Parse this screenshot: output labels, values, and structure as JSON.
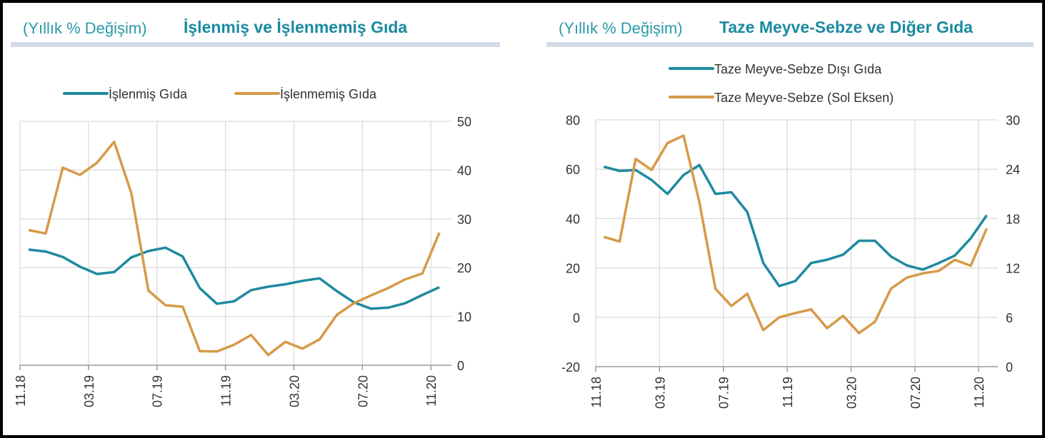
{
  "colors": {
    "processed": "#1f8aa0",
    "unprocessed": "#d69a48",
    "title": "#1a8aa0",
    "band": "#d3dbe6",
    "grid": "#dcdcdc"
  },
  "chart_data": [
    {
      "type": "line",
      "subtitle": "(Yıllık % Değişim)",
      "title": "İşlenmiş ve İşlenmemiş Gıda",
      "x": [
        "11.18",
        "12.18",
        "01.19",
        "02.19",
        "03.19",
        "04.19",
        "05.19",
        "06.19",
        "07.19",
        "08.19",
        "09.19",
        "10.19",
        "11.19",
        "12.19",
        "01.20",
        "02.20",
        "03.20",
        "04.20",
        "05.20",
        "06.20",
        "07.20",
        "08.20",
        "09.20",
        "10.20",
        "11.20"
      ],
      "xticks": [
        "11.18",
        "03.19",
        "07.19",
        "11.19",
        "03.20",
        "07.20",
        "11.20"
      ],
      "y_axis_right": {
        "ylim": [
          0,
          50
        ],
        "ticks": [
          0,
          10,
          20,
          30,
          40,
          50
        ]
      },
      "grid": true,
      "legend_placement": "top",
      "series": [
        {
          "name": "İşlenmiş Gıda",
          "axis": "right",
          "color": "#1f8aa0",
          "values": [
            23.7,
            23.3,
            22.2,
            20.2,
            18.7,
            19.1,
            22.1,
            23.4,
            24.1,
            22.3,
            15.8,
            12.6,
            13.1,
            15.4,
            16.1,
            16.6,
            17.3,
            17.8,
            15.2,
            12.9,
            11.6,
            11.8,
            12.7,
            14.4,
            16.0
          ]
        },
        {
          "name": "İşlenmemiş Gıda",
          "axis": "right",
          "color": "#d69a48",
          "values": [
            27.7,
            27.0,
            40.5,
            39.0,
            41.5,
            45.8,
            35.3,
            15.3,
            12.3,
            12.0,
            2.9,
            2.8,
            4.2,
            6.2,
            2.1,
            4.8,
            3.4,
            5.3,
            10.3,
            12.7,
            14.3,
            15.8,
            17.6,
            18.8,
            27.2
          ]
        }
      ]
    },
    {
      "type": "line",
      "subtitle": "(Yıllık % Değişim)",
      "title": "Taze Meyve-Sebze ve Diğer Gıda",
      "x": [
        "11.18",
        "12.18",
        "01.19",
        "02.19",
        "03.19",
        "04.19",
        "05.19",
        "06.19",
        "07.19",
        "08.19",
        "09.19",
        "10.19",
        "11.19",
        "12.19",
        "01.20",
        "02.20",
        "03.20",
        "04.20",
        "05.20",
        "06.20",
        "07.20",
        "08.20",
        "09.20",
        "10.20",
        "11.20"
      ],
      "xticks": [
        "11.18",
        "03.19",
        "07.19",
        "11.19",
        "03.20",
        "07.20",
        "11.20"
      ],
      "y_axis_left": {
        "ylim": [
          -20,
          80
        ],
        "ticks": [
          -20,
          0,
          20,
          40,
          60,
          80
        ]
      },
      "y_axis_right": {
        "ylim": [
          0,
          30
        ],
        "ticks": [
          0,
          6,
          12,
          18,
          24,
          30
        ]
      },
      "grid": true,
      "legend_placement": "top",
      "series": [
        {
          "name": "Taze Meyve-Sebze Dışı Gıda",
          "axis": "right",
          "color": "#1f8aa0",
          "values": [
            24.3,
            23.8,
            23.9,
            22.7,
            21.0,
            23.3,
            24.5,
            21.0,
            21.2,
            18.8,
            12.6,
            9.8,
            10.4,
            12.6,
            13.0,
            13.6,
            15.3,
            15.3,
            13.4,
            12.3,
            11.8,
            12.6,
            13.5,
            15.6,
            18.4
          ]
        },
        {
          "name": "Taze Meyve-Sebze (Sol Eksen)",
          "axis": "left",
          "color": "#d69a48",
          "values": [
            32.6,
            30.7,
            64.2,
            59.7,
            70.6,
            73.6,
            46.5,
            11.6,
            4.6,
            9.5,
            -5.2,
            0.0,
            1.7,
            3.2,
            -4.4,
            0.6,
            -6.4,
            -1.8,
            11.6,
            16.1,
            17.8,
            18.8,
            23.3,
            20.9,
            36.0
          ]
        }
      ]
    }
  ]
}
